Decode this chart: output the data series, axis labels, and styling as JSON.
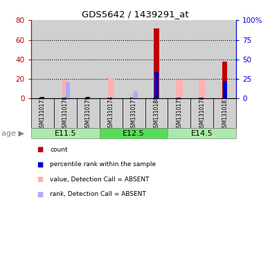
{
  "title": "GDS5642 / 1439291_at",
  "samples": [
    "GSM1310173",
    "GSM1310176",
    "GSM1310179",
    "GSM1310174",
    "GSM1310177",
    "GSM1310180",
    "GSM1310175",
    "GSM1310178",
    "GSM1310181"
  ],
  "age_groups": [
    {
      "label": "E11.5",
      "start": 0,
      "end": 3
    },
    {
      "label": "E12.5",
      "start": 3,
      "end": 6
    },
    {
      "label": "E14.5",
      "start": 6,
      "end": 9
    }
  ],
  "red_bars": [
    0,
    0,
    0,
    0,
    0,
    72,
    0,
    0,
    38
  ],
  "blue_bars": [
    2,
    0,
    2,
    0,
    0,
    34,
    0,
    0,
    22
  ],
  "pink_bars": [
    0,
    19,
    0,
    21,
    4,
    0,
    19,
    19,
    0
  ],
  "lightblue_bars": [
    0,
    20,
    0,
    0,
    9,
    0,
    0,
    0,
    0
  ],
  "ylim_left": [
    0,
    80
  ],
  "ylim_right": [
    0,
    100
  ],
  "yticks_left": [
    0,
    20,
    40,
    60,
    80
  ],
  "ytick_labels_left": [
    "0",
    "20",
    "40",
    "60",
    "80"
  ],
  "yticks_right": [
    0,
    25,
    50,
    75,
    100
  ],
  "ytick_labels_right": [
    "0",
    "25",
    "50",
    "75",
    "100%"
  ],
  "red_color": "#C00000",
  "blue_color": "#0000CC",
  "pink_color": "#FFB0B0",
  "lightblue_color": "#AAAAFF",
  "sample_bg_color": "#D0D0D0",
  "age_colors": [
    "#AAEAAA",
    "#55DD55",
    "#AAEAAA"
  ],
  "age_label": "age",
  "legend_items": [
    {
      "color": "#C00000",
      "label": "count"
    },
    {
      "color": "#0000CC",
      "label": "percentile rank within the sample"
    },
    {
      "color": "#FFB0B0",
      "label": "value, Detection Call = ABSENT"
    },
    {
      "color": "#AAAAFF",
      "label": "rank, Detection Call = ABSENT"
    }
  ]
}
